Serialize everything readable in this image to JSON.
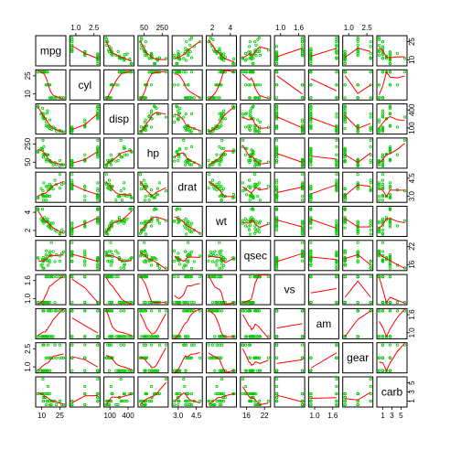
{
  "chart_data": {
    "type": "scatter",
    "variables": [
      "mpg",
      "cyl",
      "disp",
      "hp",
      "drat",
      "wt",
      "qsec",
      "vs",
      "am",
      "gear",
      "carb"
    ],
    "ranges": {
      "mpg": [
        10.4,
        33.9
      ],
      "cyl": [
        4,
        8
      ],
      "disp": [
        71.1,
        472
      ],
      "hp": [
        52,
        335
      ],
      "drat": [
        2.76,
        4.93
      ],
      "wt": [
        1.513,
        5.424
      ],
      "qsec": [
        14.5,
        22.9
      ],
      "vs": [
        0,
        1
      ],
      "am": [
        0,
        1
      ],
      "gear": [
        3,
        5
      ],
      "carb": [
        1,
        8
      ]
    },
    "axis_ticks": {
      "top": [
        {
          "var": "cyl",
          "labels": [
            "1.0",
            "2.5"
          ]
        },
        {
          "var": "hp",
          "labels": [
            "50",
            "250"
          ]
        },
        {
          "var": "wt",
          "labels": [
            "2",
            "4"
          ]
        },
        {
          "var": "vs",
          "labels": [
            "1.0",
            "1.6"
          ]
        },
        {
          "var": "gear",
          "labels": [
            "1.0",
            "2.5"
          ]
        }
      ],
      "bottom": [
        {
          "var": "mpg",
          "labels": [
            "10",
            "25"
          ]
        },
        {
          "var": "disp",
          "labels": [
            "100",
            "400"
          ]
        },
        {
          "var": "drat",
          "labels": [
            "3.0",
            "4.5"
          ]
        },
        {
          "var": "qsec",
          "labels": [
            "16",
            "22"
          ]
        },
        {
          "var": "am",
          "labels": [
            "1.0",
            "1.6"
          ]
        },
        {
          "var": "carb",
          "labels": [
            "1",
            "3",
            "5"
          ]
        }
      ],
      "left": [
        {
          "var": "cyl",
          "labels": [
            "10",
            "25"
          ]
        },
        {
          "var": "hp",
          "labels": [
            "50",
            "250"
          ]
        },
        {
          "var": "wt",
          "labels": [
            "2",
            "4"
          ]
        },
        {
          "var": "vs",
          "labels": [
            "1.0",
            "1.6"
          ]
        },
        {
          "var": "gear",
          "labels": [
            "1.0",
            "2.5"
          ]
        }
      ],
      "right": [
        {
          "var": "mpg",
          "labels": [
            "10",
            "25"
          ]
        },
        {
          "var": "disp",
          "labels": [
            "100",
            "400"
          ]
        },
        {
          "var": "drat",
          "labels": [
            "3.0",
            "4.5"
          ]
        },
        {
          "var": "qsec",
          "labels": [
            "16",
            "22"
          ]
        },
        {
          "var": "am",
          "labels": [
            "1.0",
            "1.6"
          ]
        },
        {
          "var": "carb",
          "labels": [
            "1",
            "3",
            "5"
          ]
        }
      ]
    },
    "smoother": "lowess",
    "points": [
      [
        21,
        6,
        160,
        110,
        3.9,
        2.62,
        16.46,
        0,
        1,
        4,
        4
      ],
      [
        21,
        6,
        160,
        110,
        3.9,
        2.875,
        17.02,
        0,
        1,
        4,
        4
      ],
      [
        22.8,
        4,
        108,
        93,
        3.85,
        2.32,
        18.61,
        1,
        1,
        4,
        1
      ],
      [
        21.4,
        6,
        258,
        110,
        3.08,
        3.215,
        19.44,
        1,
        0,
        3,
        1
      ],
      [
        18.7,
        8,
        360,
        175,
        3.15,
        3.44,
        17.02,
        0,
        0,
        3,
        2
      ],
      [
        18.1,
        6,
        225,
        105,
        2.76,
        3.46,
        20.22,
        1,
        0,
        3,
        1
      ],
      [
        14.3,
        8,
        360,
        245,
        3.21,
        3.57,
        15.84,
        0,
        0,
        3,
        4
      ],
      [
        24.4,
        4,
        146.7,
        62,
        3.69,
        3.19,
        20,
        1,
        0,
        4,
        2
      ],
      [
        22.8,
        4,
        140.8,
        95,
        3.92,
        3.15,
        22.9,
        1,
        0,
        4,
        2
      ],
      [
        19.2,
        6,
        167.6,
        123,
        3.92,
        3.44,
        18.3,
        1,
        0,
        4,
        4
      ],
      [
        17.8,
        6,
        167.6,
        123,
        3.92,
        3.44,
        18.9,
        1,
        0,
        4,
        4
      ],
      [
        16.4,
        8,
        275.8,
        180,
        3.07,
        4.07,
        17.4,
        0,
        0,
        3,
        3
      ],
      [
        17.3,
        8,
        275.8,
        180,
        3.07,
        3.73,
        17.6,
        0,
        0,
        3,
        3
      ],
      [
        15.2,
        8,
        275.8,
        180,
        3.07,
        3.78,
        18,
        0,
        0,
        3,
        3
      ],
      [
        10.4,
        8,
        472,
        205,
        2.93,
        5.25,
        17.98,
        0,
        0,
        3,
        4
      ],
      [
        10.4,
        8,
        460,
        215,
        3,
        5.424,
        17.82,
        0,
        0,
        3,
        4
      ],
      [
        14.7,
        8,
        440,
        230,
        3.23,
        5.345,
        17.42,
        0,
        0,
        3,
        4
      ],
      [
        32.4,
        4,
        78.7,
        66,
        4.08,
        2.2,
        19.47,
        1,
        1,
        4,
        1
      ],
      [
        30.4,
        4,
        75.7,
        52,
        4.93,
        1.615,
        18.52,
        1,
        1,
        4,
        2
      ],
      [
        33.9,
        4,
        71.1,
        65,
        4.22,
        1.835,
        19.9,
        1,
        1,
        4,
        1
      ],
      [
        21.5,
        4,
        120.1,
        97,
        3.7,
        2.465,
        20.01,
        1,
        0,
        3,
        1
      ],
      [
        15.5,
        8,
        318,
        150,
        2.76,
        3.52,
        16.87,
        0,
        0,
        3,
        2
      ],
      [
        15.2,
        8,
        304,
        150,
        3.15,
        3.435,
        17.3,
        0,
        0,
        3,
        2
      ],
      [
        13.3,
        8,
        350,
        245,
        3.73,
        3.84,
        15.41,
        0,
        0,
        3,
        4
      ],
      [
        19.2,
        8,
        400,
        175,
        3.08,
        3.845,
        17.05,
        0,
        0,
        3,
        2
      ],
      [
        27.3,
        4,
        79,
        66,
        4.08,
        1.935,
        18.9,
        1,
        1,
        4,
        1
      ],
      [
        26,
        4,
        120.3,
        91,
        4.43,
        2.14,
        16.7,
        0,
        1,
        5,
        2
      ],
      [
        30.4,
        4,
        95.1,
        113,
        3.77,
        1.513,
        16.9,
        1,
        1,
        5,
        2
      ],
      [
        15.8,
        8,
        351,
        264,
        4.22,
        3.17,
        14.5,
        0,
        1,
        5,
        4
      ],
      [
        19.7,
        6,
        145,
        175,
        3.62,
        2.77,
        15.5,
        0,
        1,
        5,
        6
      ],
      [
        15,
        8,
        301,
        335,
        3.54,
        3.57,
        14.6,
        0,
        1,
        5,
        8
      ],
      [
        21.4,
        4,
        121,
        109,
        4.11,
        2.78,
        18.6,
        1,
        1,
        4,
        2
      ]
    ]
  }
}
